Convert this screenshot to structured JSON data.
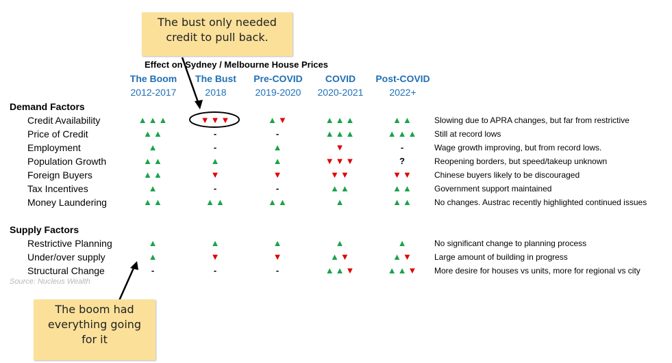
{
  "table": {
    "title": "Effect on Sydney / Melbourne House Prices",
    "columns": [
      {
        "name": "The Boom",
        "period": "2012-2017"
      },
      {
        "name": "The Bust",
        "period": "2018"
      },
      {
        "name": "Pre-COVID",
        "period": "2019-2020"
      },
      {
        "name": "COVID",
        "period": "2020-2021"
      },
      {
        "name": "Post-COVID",
        "period": "2022+"
      }
    ],
    "sections": [
      {
        "title": "Demand Factors",
        "rows": [
          {
            "label": "Credit Availability",
            "cells": [
              "▲▲▲",
              "▼▼▼",
              "▲▼",
              "▲▲▲",
              "▲▲"
            ],
            "comment": "Slowing due to APRA changes, but far from restrictive"
          },
          {
            "label": "Price of Credit",
            "cells": [
              "▲▲",
              "-",
              "-",
              "▲▲▲",
              "▲▲▲"
            ],
            "comment": "Still at record lows"
          },
          {
            "label": "Employment",
            "cells": [
              "▲",
              "-",
              "▲",
              "▼",
              "-"
            ],
            "comment": "Wage growth improving, but from record lows."
          },
          {
            "label": "Population Growth",
            "cells": [
              "▲▲",
              "▲",
              "▲",
              "▼▼▼",
              "?"
            ],
            "comment": "Reopening borders, but speed/takeup unknown"
          },
          {
            "label": "Foreign Buyers",
            "cells": [
              "▲▲",
              "▼",
              "▼",
              "▼▼",
              "▼▼"
            ],
            "comment": "Chinese buyers likely to be discouraged"
          },
          {
            "label": "Tax Incentives",
            "cells": [
              "▲",
              "-",
              "-",
              "▲▲",
              "▲▲"
            ],
            "comment": "Government support maintained"
          },
          {
            "label": "Money Laundering",
            "cells": [
              "▲▲",
              "▲▲",
              "▲▲",
              "▲",
              "▲▲"
            ],
            "comment": "No changes. Austrac recently highlighted continued issues"
          }
        ]
      },
      {
        "title": "Supply Factors",
        "rows": [
          {
            "label": "Restrictive Planning",
            "cells": [
              "▲",
              "▲",
              "▲",
              "▲",
              "▲"
            ],
            "comment": "No significant change to planning process"
          },
          {
            "label": "Under/over supply",
            "cells": [
              "▲",
              "▼",
              "▼",
              "▲▼",
              "▲▼"
            ],
            "comment": "Large amount of building in progress"
          },
          {
            "label": "Structural Change",
            "cells": [
              "-",
              "-",
              "-",
              "▲▲▼",
              "▲▲▼"
            ],
            "comment": "More desire for houses vs units, more for regional vs city"
          }
        ]
      }
    ]
  },
  "source": "Source: Nucleus Wealth",
  "callouts": [
    {
      "lines": [
        "The bust only needed",
        "credit to pull back."
      ]
    },
    {
      "lines": [
        "The boom had",
        "everything going",
        "for it"
      ]
    }
  ]
}
